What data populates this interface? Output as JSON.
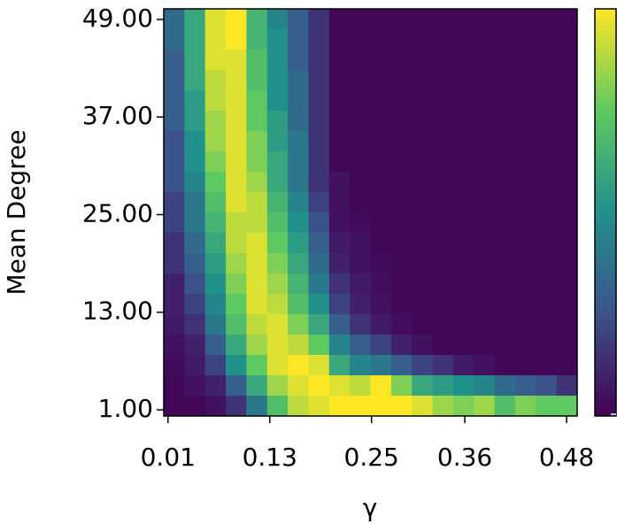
{
  "chart_data": {
    "type": "heatmap",
    "xlabel": "γ",
    "ylabel": "Mean Degree",
    "xlim": [
      0.005,
      0.4925
    ],
    "ylim": [
      0.24,
      50.3
    ],
    "xticks": [
      0.01,
      0.13,
      0.25,
      0.36,
      0.48
    ],
    "yticks": [
      {
        "value": 1,
        "label": "1.00"
      },
      {
        "value": 13,
        "label": "13.00"
      },
      {
        "value": 25,
        "label": "25.00"
      },
      {
        "value": 37,
        "label": "37.00"
      },
      {
        "value": 49,
        "label": "49.00"
      }
    ],
    "colorscale": "viridis",
    "values": [
      [
        0.35,
        0.6,
        0.95,
        1,
        0.65,
        0.45,
        0.3,
        0.15,
        0.02,
        0.02,
        0.02,
        0.02,
        0.02,
        0.02,
        0.02,
        0.02,
        0.02,
        0.02,
        0.02,
        0.02
      ],
      [
        0.35,
        0.6,
        0.95,
        1,
        0.65,
        0.5,
        0.3,
        0.15,
        0.02,
        0.02,
        0.02,
        0.02,
        0.02,
        0.02,
        0.02,
        0.02,
        0.02,
        0.02,
        0.02,
        0.02
      ],
      [
        0.3,
        0.6,
        0.95,
        0.95,
        0.7,
        0.5,
        0.3,
        0.15,
        0.02,
        0.02,
        0.02,
        0.02,
        0.02,
        0.02,
        0.02,
        0.02,
        0.02,
        0.02,
        0.02,
        0.02
      ],
      [
        0.3,
        0.6,
        0.9,
        0.95,
        0.7,
        0.5,
        0.35,
        0.15,
        0.02,
        0.02,
        0.02,
        0.02,
        0.02,
        0.02,
        0.02,
        0.02,
        0.02,
        0.02,
        0.02,
        0.02
      ],
      [
        0.3,
        0.55,
        0.9,
        0.95,
        0.75,
        0.5,
        0.35,
        0.15,
        0.02,
        0.02,
        0.02,
        0.02,
        0.02,
        0.02,
        0.02,
        0.02,
        0.02,
        0.02,
        0.02,
        0.02
      ],
      [
        0.3,
        0.55,
        0.85,
        0.95,
        0.75,
        0.55,
        0.35,
        0.15,
        0.02,
        0.02,
        0.02,
        0.02,
        0.02,
        0.02,
        0.02,
        0.02,
        0.02,
        0.02,
        0.02,
        0.02
      ],
      [
        0.25,
        0.5,
        0.85,
        0.95,
        0.8,
        0.55,
        0.4,
        0.15,
        0.02,
        0.02,
        0.02,
        0.02,
        0.02,
        0.02,
        0.02,
        0.02,
        0.02,
        0.02,
        0.02,
        0.02
      ],
      [
        0.25,
        0.5,
        0.8,
        0.95,
        0.8,
        0.6,
        0.4,
        0.15,
        0.02,
        0.02,
        0.02,
        0.02,
        0.02,
        0.02,
        0.02,
        0.02,
        0.02,
        0.02,
        0.02,
        0.02
      ],
      [
        0.25,
        0.45,
        0.75,
        0.95,
        0.85,
        0.6,
        0.4,
        0.15,
        0.05,
        0.02,
        0.02,
        0.02,
        0.02,
        0.02,
        0.02,
        0.02,
        0.02,
        0.02,
        0.02,
        0.02
      ],
      [
        0.2,
        0.4,
        0.7,
        0.95,
        0.9,
        0.65,
        0.45,
        0.2,
        0.05,
        0.02,
        0.02,
        0.02,
        0.02,
        0.02,
        0.02,
        0.02,
        0.02,
        0.02,
        0.02,
        0.02
      ],
      [
        0.2,
        0.4,
        0.65,
        0.9,
        0.9,
        0.7,
        0.5,
        0.25,
        0.05,
        0.03,
        0.02,
        0.02,
        0.02,
        0.02,
        0.02,
        0.02,
        0.02,
        0.02,
        0.02,
        0.02
      ],
      [
        0.15,
        0.35,
        0.6,
        0.9,
        0.95,
        0.75,
        0.55,
        0.3,
        0.08,
        0.05,
        0.02,
        0.02,
        0.02,
        0.02,
        0.02,
        0.02,
        0.02,
        0.02,
        0.02,
        0.02
      ],
      [
        0.15,
        0.3,
        0.55,
        0.85,
        0.95,
        0.8,
        0.6,
        0.35,
        0.1,
        0.05,
        0.03,
        0.02,
        0.02,
        0.02,
        0.02,
        0.02,
        0.02,
        0.02,
        0.02,
        0.02
      ],
      [
        0.1,
        0.25,
        0.5,
        0.8,
        0.95,
        0.85,
        0.65,
        0.4,
        0.15,
        0.08,
        0.04,
        0.02,
        0.02,
        0.02,
        0.02,
        0.02,
        0.02,
        0.02,
        0.02,
        0.02
      ],
      [
        0.1,
        0.2,
        0.45,
        0.75,
        0.95,
        0.9,
        0.7,
        0.5,
        0.2,
        0.1,
        0.05,
        0.02,
        0.02,
        0.02,
        0.02,
        0.02,
        0.02,
        0.02,
        0.02,
        0.02
      ],
      [
        0.08,
        0.15,
        0.4,
        0.7,
        0.9,
        0.95,
        0.8,
        0.6,
        0.3,
        0.15,
        0.08,
        0.04,
        0.02,
        0.02,
        0.02,
        0.02,
        0.02,
        0.02,
        0.02,
        0.02
      ],
      [
        0.05,
        0.1,
        0.3,
        0.6,
        0.85,
        0.95,
        0.9,
        0.75,
        0.45,
        0.3,
        0.2,
        0.1,
        0.05,
        0.02,
        0.02,
        0.02,
        0.02,
        0.02,
        0.02,
        0.02
      ],
      [
        0.03,
        0.08,
        0.2,
        0.5,
        0.75,
        0.95,
        1,
        0.95,
        0.6,
        0.45,
        0.4,
        0.3,
        0.2,
        0.15,
        0.08,
        0.05,
        0.02,
        0.02,
        0.02,
        0.02
      ],
      [
        0.02,
        0.05,
        0.1,
        0.3,
        0.6,
        0.85,
        0.95,
        1,
        0.95,
        0.9,
        1,
        0.8,
        0.6,
        0.55,
        0.5,
        0.45,
        0.35,
        0.3,
        0.25,
        0.15
      ],
      [
        0.02,
        0.02,
        0.05,
        0.15,
        0.4,
        0.7,
        0.9,
        0.95,
        1,
        1,
        1,
        1,
        0.95,
        0.85,
        0.8,
        0.85,
        0.7,
        0.8,
        0.75,
        0.75
      ]
    ]
  }
}
